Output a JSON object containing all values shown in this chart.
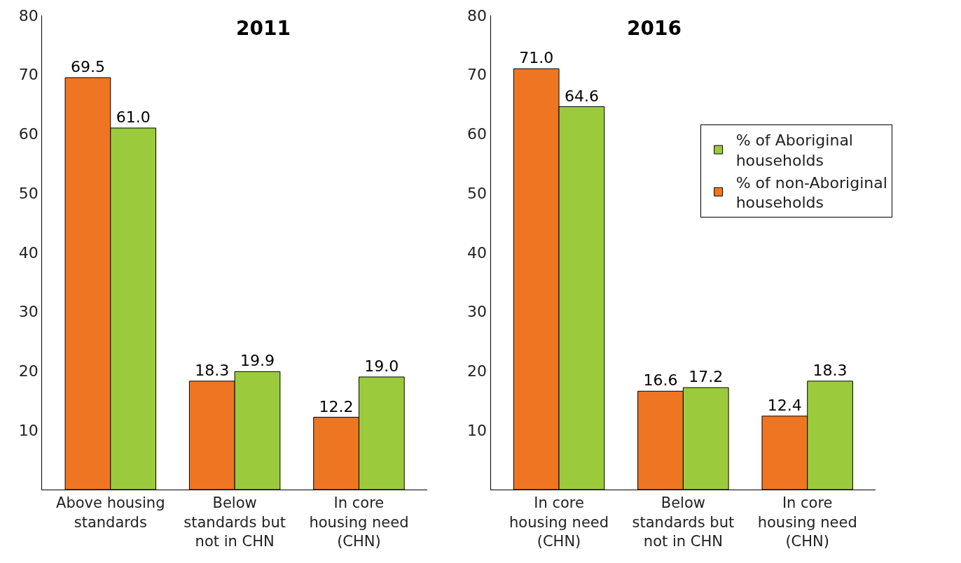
{
  "chart_data": [
    {
      "type": "bar",
      "title": "2011",
      "categories": [
        "Above housing standards",
        "Below standards but not in CHN",
        "In core housing need (CHN)"
      ],
      "series": [
        {
          "color": "#ee7623",
          "values": [
            69.5,
            18.3,
            12.2
          ],
          "value_labels": [
            "69.5",
            "18.3",
            "12.2"
          ]
        },
        {
          "color": "#9bcb3c",
          "values": [
            61.0,
            19.9,
            19.0
          ],
          "value_labels": [
            "61.0",
            "19.9",
            "19.0"
          ]
        }
      ],
      "ylim": [
        0,
        80
      ],
      "yticks": [
        10,
        20,
        30,
        40,
        50,
        60,
        70,
        80
      ],
      "grid": false
    },
    {
      "type": "bar",
      "title": "2016",
      "categories": [
        "In core housing need (CHN)",
        "Below standards but not in CHN",
        "In core housing need (CHN)"
      ],
      "series": [
        {
          "name": "% of non-Aboriginal households",
          "color": "#ee7623",
          "values": [
            71.0,
            16.6,
            12.4
          ],
          "value_labels": [
            "71.0",
            "16.6",
            "12.4"
          ]
        },
        {
          "name": "% of Aboriginal households",
          "color": "#9bcb3c",
          "values": [
            64.6,
            17.2,
            18.3
          ],
          "value_labels": [
            "64.6",
            "17.2",
            "18.3"
          ]
        }
      ],
      "ylim": [
        0,
        80
      ],
      "yticks": [
        10,
        20,
        30,
        40,
        50,
        60,
        70,
        80
      ],
      "grid": false,
      "legend": "top right"
    }
  ]
}
